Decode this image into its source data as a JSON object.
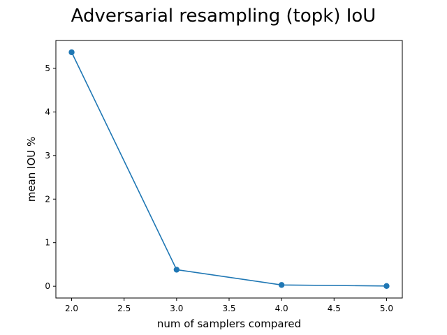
{
  "chart_data": {
    "type": "line",
    "title": "Adversarial resampling (topk) IoU",
    "xlabel": "num of samplers compared",
    "ylabel": "mean IOU %",
    "x": [
      2.0,
      3.0,
      4.0,
      5.0
    ],
    "series": [
      {
        "values": [
          5.37,
          0.38,
          0.03,
          0.005
        ],
        "color": "#1f77b4",
        "marker": "circle"
      }
    ],
    "xlim": [
      1.85,
      5.15
    ],
    "ylim": [
      -0.27,
      5.64
    ],
    "xticks": [
      2.0,
      2.5,
      3.0,
      3.5,
      4.0,
      4.5,
      5.0
    ],
    "xtick_labels": [
      "2.0",
      "2.5",
      "3.0",
      "3.5",
      "4.0",
      "4.5",
      "5.0"
    ],
    "yticks": [
      0,
      1,
      2,
      3,
      4,
      5
    ],
    "ytick_labels": [
      "0",
      "1",
      "2",
      "3",
      "4",
      "5"
    ],
    "grid": false,
    "legend": "none"
  }
}
